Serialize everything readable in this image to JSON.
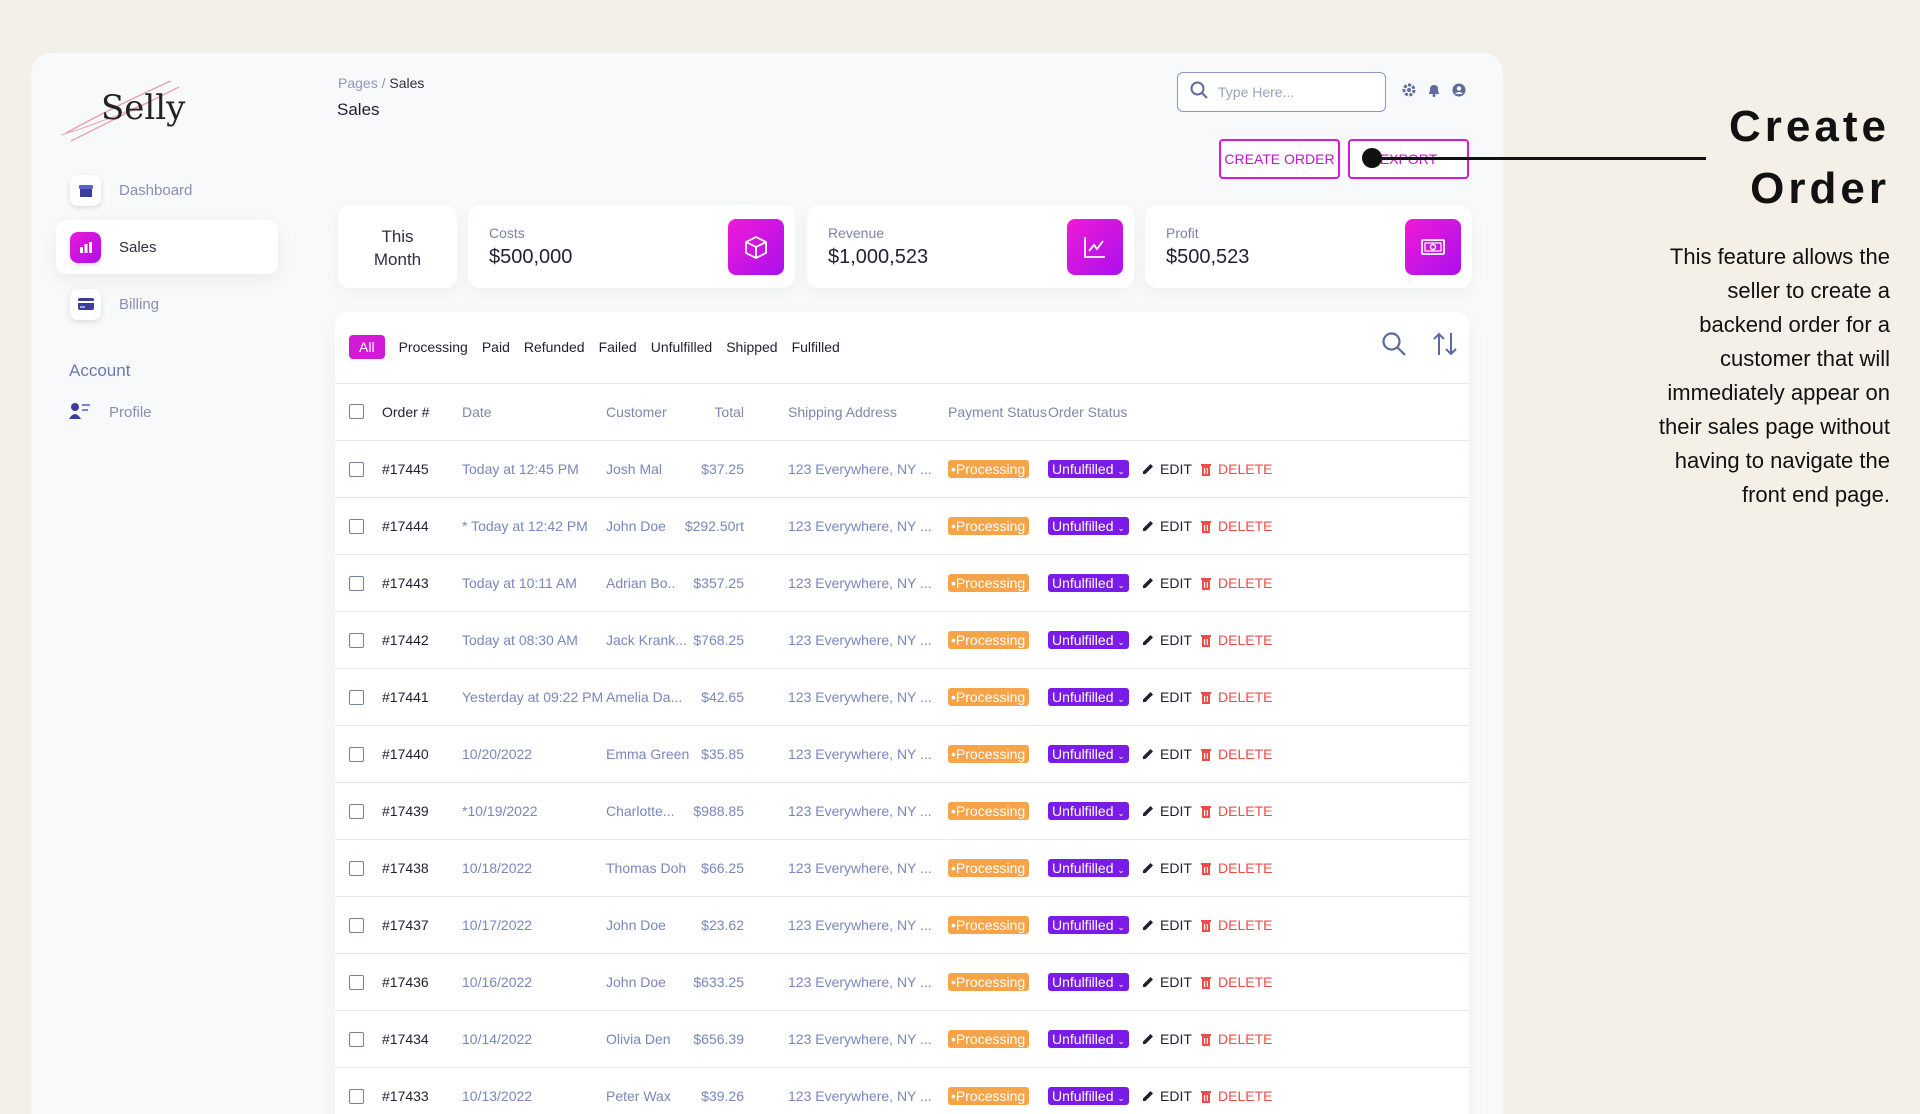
{
  "app": {
    "brand": "Selly"
  },
  "sidebar": {
    "items": [
      {
        "label": "Dashboard",
        "icon": "store-icon",
        "active": false
      },
      {
        "label": "Sales",
        "icon": "bar-chart-icon",
        "active": true
      },
      {
        "label": "Billing",
        "icon": "credit-card-icon",
        "active": false
      }
    ],
    "account_heading": "Account",
    "profile_label": "Profile"
  },
  "header": {
    "breadcrumb_root": "Pages",
    "breadcrumb_sep": " / ",
    "breadcrumb_current": "Sales",
    "title": "Sales",
    "search_placeholder": "Type Here...",
    "create_label": "CREATE ORDER",
    "export_label": "EXPORT"
  },
  "stats": {
    "period_line1": "This",
    "period_line2": "Month",
    "costs_label": "Costs",
    "costs_value": "$500,000",
    "revenue_label": "Revenue",
    "revenue_value": "$1,000,523",
    "profit_label": "Profit",
    "profit_value": "$500,523"
  },
  "filters": [
    "All",
    "Processing",
    "Paid",
    "Refunded",
    "Failed",
    "Unfulfilled",
    "Shipped",
    "Fulfilled"
  ],
  "table": {
    "columns": {
      "order": "Order #",
      "date": "Date",
      "customer": "Customer",
      "total": "Total",
      "address": "Shipping Address",
      "payment": "Payment Status",
      "status": "Order Status"
    },
    "edit_label": "EDIT",
    "delete_label": "DELETE",
    "rows": [
      {
        "order": "#17445",
        "date": "Today at 12:45 PM",
        "customer": "Josh Mal",
        "total": "$37.25",
        "address": "123 Everywhere, NY ...",
        "payment": "Processing",
        "status": "Unfulfilled"
      },
      {
        "order": "#17444",
        "date": "* Today at 12:42 PM",
        "customer": "John Doe",
        "total": "$292.50rt",
        "address": "123 Everywhere, NY ...",
        "payment": "Processing",
        "status": "Unfulfilled"
      },
      {
        "order": "#17443",
        "date": "Today at 10:11 AM",
        "customer": "Adrian Bo..",
        "total": "$357.25",
        "address": "123 Everywhere, NY ...",
        "payment": "Processing",
        "status": "Unfulfilled"
      },
      {
        "order": "#17442",
        "date": "Today at 08:30 AM",
        "customer": "Jack Krank...",
        "total": "$768.25",
        "address": "123 Everywhere, NY ...",
        "payment": "Processing",
        "status": "Unfulfilled"
      },
      {
        "order": "#17441",
        "date": "Yesterday at 09:22 PM",
        "customer": "Amelia Da...",
        "total": "$42.65",
        "address": "123 Everywhere, NY ...",
        "payment": "Processing",
        "status": "Unfulfilled"
      },
      {
        "order": "#17440",
        "date": "10/20/2022",
        "customer": "Emma Green",
        "total": "$35.85",
        "address": "123 Everywhere, NY ...",
        "payment": "Processing",
        "status": "Unfulfilled"
      },
      {
        "order": "#17439",
        "date": "*10/19/2022",
        "customer": "Charlotte...",
        "total": "$988.85",
        "address": "123 Everywhere, NY ...",
        "payment": "Processing",
        "status": "Unfulfilled"
      },
      {
        "order": "#17438",
        "date": "10/18/2022",
        "customer": "Thomas Doh",
        "total": "$66.25",
        "address": "123 Everywhere, NY ...",
        "payment": "Processing",
        "status": "Unfulfilled"
      },
      {
        "order": "#17437",
        "date": "10/17/2022",
        "customer": "John Doe",
        "total": "$23.62",
        "address": "123 Everywhere, NY ...",
        "payment": "Processing",
        "status": "Unfulfilled"
      },
      {
        "order": "#17436",
        "date": "10/16/2022",
        "customer": "John Doe",
        "total": "$633.25",
        "address": "123 Everywhere, NY ...",
        "payment": "Processing",
        "status": "Unfulfilled"
      },
      {
        "order": "#17434",
        "date": "10/14/2022",
        "customer": "Olivia Den",
        "total": "$656.39",
        "address": "123 Everywhere, NY ...",
        "payment": "Processing",
        "status": "Unfulfilled"
      },
      {
        "order": "#17433",
        "date": "10/13/2022",
        "customer": "Peter Wax",
        "total": "$39.26",
        "address": "123 Everywhere, NY ...",
        "payment": "Processing",
        "status": "Unfulfilled"
      }
    ]
  },
  "annotation": {
    "title_line1": "Create",
    "title_line2": "Order",
    "body": "This feature allows the seller to create a backend order for a customer that will immediately appear on their sales page without having to navigate the front end page."
  },
  "colors": {
    "accent": "#d21bd6",
    "payment_pill": "#f5a44a",
    "status_pill": "#7b1be8",
    "delete": "#ef4b4b"
  }
}
